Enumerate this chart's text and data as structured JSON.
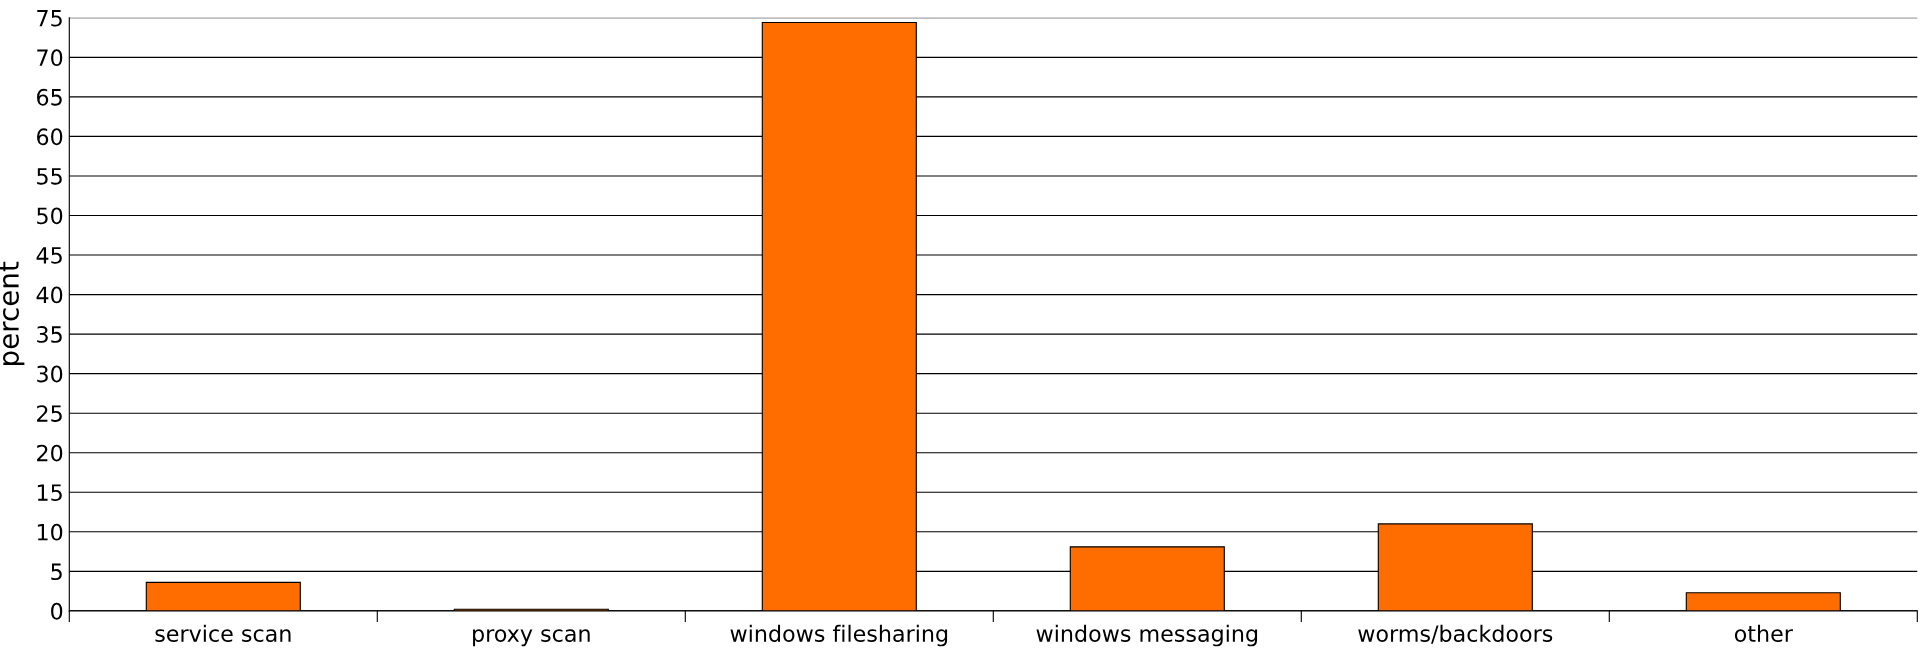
{
  "chart_data": {
    "type": "bar",
    "ylabel": "percent",
    "categories": [
      "service scan",
      "proxy scan",
      "windows filesharing",
      "windows messaging",
      "worms/backdoors",
      "other"
    ],
    "values": [
      3.6,
      0.2,
      74.4,
      8.1,
      11.0,
      2.3
    ],
    "color": "#ff6d00",
    "ylim": [
      0,
      75
    ],
    "yticks": [
      0,
      5,
      10,
      15,
      20,
      25,
      30,
      35,
      40,
      45,
      50,
      55,
      60,
      65,
      70,
      75
    ],
    "grid": "y"
  }
}
